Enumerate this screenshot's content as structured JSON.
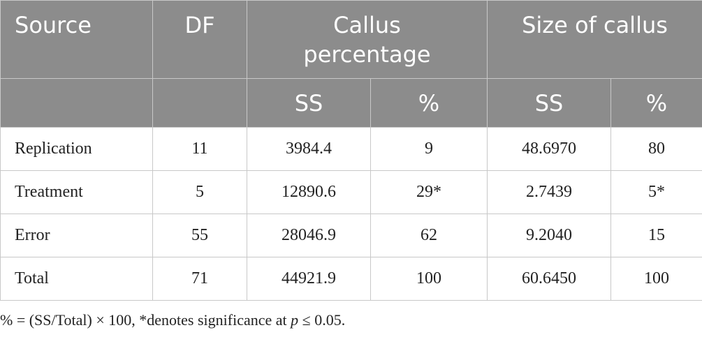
{
  "table": {
    "header": [
      "Source",
      "DF",
      "Callus percentage",
      "Size of callus"
    ],
    "subheader": [
      "SS",
      "%",
      "SS",
      "%"
    ],
    "rows": [
      [
        "Replication",
        "11",
        "3984.4",
        "9",
        "48.6970",
        "80"
      ],
      [
        "Treatment",
        "5",
        "12890.6",
        "29*",
        "2.7439",
        "5*"
      ],
      [
        "Error",
        "55",
        "28046.9",
        "62",
        "9.2040",
        "15"
      ],
      [
        "Total",
        "71",
        "44921.9",
        "100",
        "60.6450",
        "100"
      ]
    ]
  },
  "footnote": {
    "before": "% = (SS/Total) × 100, *denotes significance at ",
    "italic": "p",
    "after": " ≤ 0.05."
  }
}
